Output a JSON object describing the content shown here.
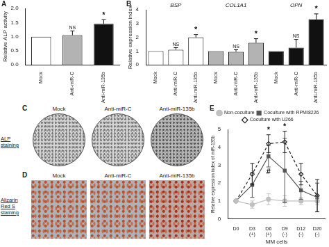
{
  "chart_data": [
    {
      "panel": "A",
      "type": "bar",
      "categories": [
        "Mock",
        "Anti-miR-C",
        "Anti-miR-135b"
      ],
      "values": [
        1.0,
        1.05,
        1.45
      ],
      "errors": [
        0,
        0.15,
        0.15
      ],
      "marks": [
        null,
        "NS",
        "*"
      ],
      "colors": [
        "#ffffff",
        "#b3b3b3",
        "#111111"
      ],
      "ylabel": "Relative ALP activity",
      "ylim": [
        0,
        2
      ],
      "yticks": [
        {
          "value": 0,
          "label": "0.0"
        },
        0.5,
        {
          "value": 1,
          "label": "1.0"
        },
        1.5,
        {
          "value": 2,
          "label": "2.0"
        }
      ],
      "grid": false
    },
    {
      "panel": "B",
      "type": "bar",
      "groups": [
        "BSP",
        "COL1A1",
        "OPN"
      ],
      "categories": [
        "Mock",
        "Anti-miR-C",
        "Anti-miR-135b",
        "Mock",
        "Anti-miR-C",
        "Anti-miR-135b",
        "Mock",
        "Anti-miR-C",
        "Anti-miR-135b"
      ],
      "values": [
        1.0,
        1.1,
        2.0,
        1.0,
        0.95,
        1.6,
        1.0,
        1.25,
        3.3
      ],
      "errors": [
        0,
        0.15,
        0.2,
        0,
        0.15,
        0.3,
        0,
        0.6,
        0.4
      ],
      "marks": [
        null,
        "NS",
        "*",
        null,
        "NS",
        "*",
        null,
        "NS",
        "*"
      ],
      "colors": [
        "#ffffff",
        "#ffffff",
        "#ffffff",
        "#b3b3b3",
        "#b3b3b3",
        "#b3b3b3",
        "#111111",
        "#111111",
        "#111111"
      ],
      "ylabel": "Relative expression index",
      "ylim": [
        0,
        4
      ],
      "yticks": [
        0,
        1,
        2,
        3,
        4
      ],
      "grid": false
    },
    {
      "panel": "E",
      "type": "line",
      "categories": [
        "D0",
        "D3",
        "D6",
        "D9",
        "D12",
        "D20"
      ],
      "x_sublabels": [
        null,
        "(+)",
        "(+)",
        "(-)",
        "(-)",
        "(-)"
      ],
      "xlabel": "MM cells",
      "ylabel": "Relative expression index of miR-135b",
      "ylim": [
        0,
        5
      ],
      "yticks": [
        0,
        1,
        2,
        3,
        4,
        5
      ],
      "grid": false,
      "legend": "top",
      "series": [
        {
          "name": "Non-coculture",
          "color": "#c0c0c0",
          "marker": "circle",
          "line_style": "solid",
          "values": [
            1.0,
            0.8,
            1.1,
            1.0,
            1.0,
            1.0
          ],
          "errors": [
            0,
            0.2,
            0.3,
            0.3,
            0.2,
            0.2
          ],
          "marks": [
            null,
            null,
            null,
            null,
            null,
            null
          ]
        },
        {
          "name": "Coculture with RPMI8226",
          "color": "#555555",
          "marker": "square",
          "line_style": "solid",
          "values": [
            1.0,
            1.9,
            3.5,
            2.7,
            1.6,
            1.2
          ],
          "errors": [
            0,
            0.7,
            0.6,
            1.8,
            0.5,
            0.8
          ],
          "marks": [
            null,
            null,
            "#",
            null,
            null,
            null
          ]
        },
        {
          "name": "Coculture with U266",
          "color": "#222222",
          "marker": "diamond",
          "line_style": "dashed",
          "values": [
            1.0,
            2.5,
            4.2,
            4.3,
            2.5,
            1.3
          ],
          "errors": [
            0,
            0.6,
            0.5,
            0.6,
            0.6,
            0.9
          ],
          "marks": [
            null,
            null,
            "*",
            "*",
            null,
            null
          ]
        }
      ]
    }
  ],
  "images": [
    {
      "panel": "C",
      "label": "ALP staining",
      "columns": [
        "Mock",
        "Anti-miR-C",
        "Anti-miR-135b"
      ]
    },
    {
      "panel": "D",
      "label": "Alizarin Red S staining",
      "columns": [
        "Mock",
        "Anti-miR-C",
        "Anti-miR-135b"
      ]
    }
  ]
}
